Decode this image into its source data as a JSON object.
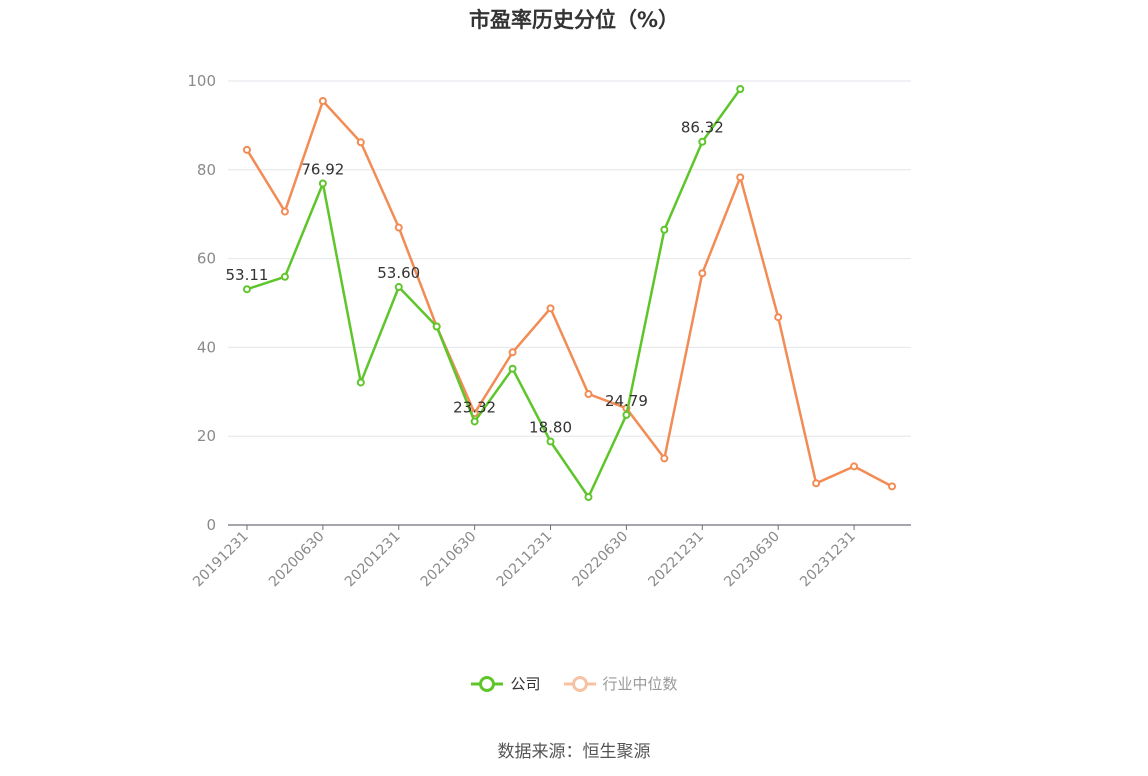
{
  "chart_data": {
    "type": "line",
    "title": "市盈率历史分位（%）",
    "x": [
      "20191231",
      "20200331",
      "20200630",
      "20200930",
      "20201231",
      "20210331",
      "20210630",
      "20210930",
      "20211231",
      "20220331",
      "20220630",
      "20220930",
      "20221231",
      "20230331",
      "20230630",
      "20230930",
      "20231231",
      "20240331"
    ],
    "x_tick_labels": [
      "20191231",
      "20200630",
      "20201231",
      "20210630",
      "20211231",
      "20220630",
      "20221231",
      "20230630",
      "20231231"
    ],
    "ylim": [
      0,
      100
    ],
    "yticks": [
      0,
      20,
      40,
      60,
      80,
      100
    ],
    "grid": true,
    "legend_placement": "bottom-center",
    "series": [
      {
        "name": "公司",
        "color": "#5ec52b",
        "values": [
          53.11,
          55.9,
          76.92,
          32.1,
          53.6,
          44.7,
          23.32,
          35.2,
          18.8,
          6.3,
          24.79,
          66.5,
          86.32,
          98.2,
          null,
          null,
          null,
          null
        ],
        "data_labels": [
          {
            "index": 0,
            "text": "53.11"
          },
          {
            "index": 2,
            "text": "76.92"
          },
          {
            "index": 4,
            "text": "53.60"
          },
          {
            "index": 6,
            "text": "23.32"
          },
          {
            "index": 8,
            "text": "18.80"
          },
          {
            "index": 10,
            "text": "24.79"
          },
          {
            "index": 12,
            "text": "86.32"
          }
        ]
      },
      {
        "name": "行业中位数",
        "color": "#f28b54",
        "values": [
          84.5,
          70.6,
          95.5,
          86.2,
          67.0,
          44.7,
          25.2,
          38.9,
          48.8,
          29.5,
          26.3,
          15.0,
          56.7,
          78.3,
          46.8,
          9.4,
          13.2,
          8.7
        ]
      }
    ]
  },
  "legend": {
    "company_label": "公司",
    "industry_label": "行业中位数"
  },
  "source_text": "数据来源：恒生聚源"
}
